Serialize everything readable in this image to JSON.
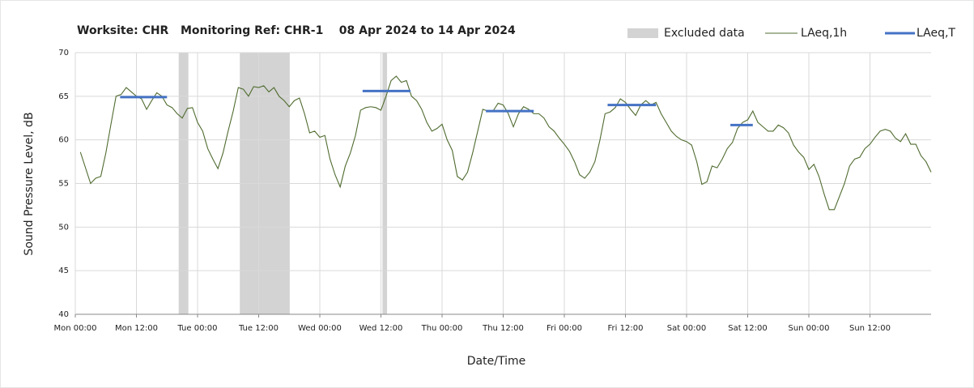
{
  "chart_data": {
    "type": "line",
    "title": "Worksite: CHR   Monitoring Ref: CHR-1    08 Apr 2024 to 14 Apr 2024",
    "x_label": "Date/Time",
    "y_label": "Sound Pressure Level, dB",
    "xlim": [
      0,
      168
    ],
    "ylim": [
      40,
      70
    ],
    "yticks": [
      40,
      45,
      50,
      55,
      60,
      65,
      70
    ],
    "xticks": [
      {
        "value": 0,
        "label": "Mon 00:00"
      },
      {
        "value": 12,
        "label": "Mon 12:00"
      },
      {
        "value": 24,
        "label": "Tue 00:00"
      },
      {
        "value": 36,
        "label": "Tue 12:00"
      },
      {
        "value": 48,
        "label": "Wed 00:00"
      },
      {
        "value": 60,
        "label": "Wed 12:00"
      },
      {
        "value": 72,
        "label": "Thu 00:00"
      },
      {
        "value": 84,
        "label": "Thu 12:00"
      },
      {
        "value": 96,
        "label": "Fri 00:00"
      },
      {
        "value": 108,
        "label": "Fri 12:00"
      },
      {
        "value": 120,
        "label": "Sat 00:00"
      },
      {
        "value": 132,
        "label": "Sat 12:00"
      },
      {
        "value": 144,
        "label": "Sun 00:00"
      },
      {
        "value": 156,
        "label": "Sun 12:00"
      }
    ],
    "grid": true,
    "legend": "top-right",
    "excluded": {
      "name": "Excluded data",
      "color": "#d3d3d3",
      "ranges": [
        [
          20.3,
          22.2
        ],
        [
          32.3,
          42.1
        ],
        [
          60.3,
          61.2
        ]
      ]
    },
    "series": [
      {
        "name": "LAeq,1h",
        "color": "#4f6b2f",
        "x": [
          1,
          2,
          3,
          4,
          5,
          6,
          7,
          8,
          9,
          10,
          11,
          12,
          13,
          14,
          15,
          16,
          17,
          18,
          19,
          20,
          21,
          22,
          23,
          24,
          25,
          26,
          27,
          28,
          29,
          30,
          31,
          32,
          33,
          34,
          35,
          36,
          37,
          38,
          39,
          40,
          41,
          42,
          43,
          44,
          45,
          46,
          47,
          48,
          49,
          50,
          51,
          52,
          53,
          54,
          55,
          56,
          57,
          58,
          59,
          60,
          61,
          62,
          63,
          64,
          65,
          66,
          67,
          68,
          69,
          70,
          71,
          72,
          73,
          74,
          75,
          76,
          77,
          78,
          79,
          80,
          81,
          82,
          83,
          84,
          85,
          86,
          87,
          88,
          89,
          90,
          91,
          92,
          93,
          94,
          95,
          96,
          97,
          98,
          99,
          100,
          101,
          102,
          103,
          104,
          105,
          106,
          107,
          108,
          109,
          110,
          111,
          112,
          113,
          114,
          115,
          116,
          117,
          118,
          119,
          120,
          121,
          122,
          123,
          124,
          125,
          126,
          127,
          128,
          129,
          130,
          131,
          132,
          133,
          134,
          135,
          136,
          137,
          138,
          139,
          140,
          141,
          142,
          143,
          144,
          145,
          146,
          147,
          148,
          149,
          150,
          151,
          152,
          153,
          154,
          155,
          156,
          157,
          158,
          159,
          160,
          161,
          162,
          163,
          164,
          165,
          166,
          167,
          168
        ],
        "values": [
          58.6,
          56.8,
          55,
          55.6,
          55.8,
          58.5,
          61.8,
          65,
          65.2,
          66,
          65.5,
          65,
          64.7,
          63.5,
          64.5,
          65.4,
          65,
          64,
          63.7,
          63,
          62.5,
          63.6,
          63.7,
          62,
          61,
          59,
          57.8,
          56.7,
          58.5,
          61,
          63.3,
          66,
          65.8,
          65,
          66.1,
          66,
          66.2,
          65.5,
          66,
          65,
          64.5,
          63.8,
          64.5,
          64.8,
          63,
          60.8,
          61,
          60.3,
          60.5,
          57.8,
          56,
          54.6,
          57,
          58.5,
          60.5,
          63.4,
          63.7,
          63.8,
          63.7,
          63.4,
          65,
          66.8,
          67.3,
          66.6,
          66.8,
          65,
          64.5,
          63.5,
          62,
          61,
          61.3,
          61.8,
          60,
          58.8,
          55.8,
          55.4,
          56.3,
          58.5,
          61,
          63.5,
          63.3,
          63.3,
          64.2,
          64,
          63,
          61.5,
          63,
          63.8,
          63.5,
          63,
          63,
          62.5,
          61.5,
          61,
          60.2,
          59.5,
          58.7,
          57.5,
          56,
          55.6,
          56.3,
          57.5,
          60,
          63,
          63.2,
          63.7,
          64.7,
          64.3,
          63.5,
          62.8,
          64,
          64.5,
          64,
          64.3,
          63,
          62,
          61,
          60.4,
          60,
          59.8,
          59.4,
          57.5,
          54.9,
          55.2,
          57,
          56.8,
          57.8,
          59,
          59.7,
          61.3,
          62,
          62.3,
          63.3,
          62,
          61.5,
          61,
          61,
          61.7,
          61.4,
          60.8,
          59.4,
          58.6,
          58,
          56.6,
          57.2,
          55.8,
          53.8,
          52,
          52,
          53.5,
          55,
          57,
          57.8,
          58,
          59,
          59.5,
          60.3,
          61,
          61.2,
          61,
          60.2,
          59.8,
          60.7,
          59.5,
          59.5,
          58.2,
          57.5,
          56.3
        ]
      },
      {
        "name": "LAeq,T",
        "color": "#4472c4",
        "x_ranges": [
          [
            8.8,
            18
          ],
          [
            56.4,
            65.8
          ],
          [
            80.6,
            90
          ],
          [
            104.5,
            114
          ],
          [
            128.6,
            133
          ]
        ],
        "values": [
          64.9,
          65.6,
          63.3,
          64,
          61.7
        ]
      }
    ]
  }
}
